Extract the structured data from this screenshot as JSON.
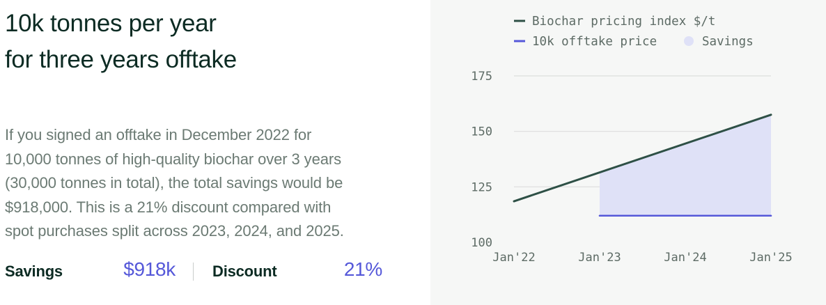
{
  "left": {
    "title_line1": "10k tonnes per year",
    "title_line2": "for three years offtake",
    "body_lines": [
      "If you signed an offtake in December 2022 for",
      "10,000 tonnes of high-quality biochar over 3 years",
      "(30,000 tonnes in total), the total savings would be",
      "$918,000. This is a 21% discount compared with",
      "spot purchases split across 2023, 2024, and 2025."
    ],
    "metrics": {
      "savings_label": "Savings",
      "savings_value": "$918k",
      "discount_label": "Discount",
      "discount_value": "21%"
    }
  },
  "colors": {
    "index_line": "#2e5046",
    "offtake_line": "#5558d9",
    "savings_fill": "#dfe1f7",
    "gridline": "#dcdedd",
    "tick_text": "#5d6b65",
    "panel_bg": "#f6f7f6"
  },
  "chart_data": {
    "type": "line",
    "legend": [
      {
        "label": "Biochar pricing index $/t",
        "marker": "line",
        "color": "#2e5046"
      },
      {
        "label": "10k offtake price",
        "marker": "line",
        "color": "#5558d9"
      },
      {
        "label": "Savings",
        "marker": "dot",
        "color": "#dfe1f7"
      }
    ],
    "legend_position": "top",
    "x_ticks": [
      "Jan'22",
      "Jan'23",
      "Jan'24",
      "Jan'25"
    ],
    "y_ticks": [
      100,
      125,
      150,
      175
    ],
    "xlim": [
      "2022-01",
      "2025-01"
    ],
    "ylim": [
      100,
      175
    ],
    "grid": true,
    "series": [
      {
        "name": "Biochar pricing index $/t",
        "color": "#2e5046",
        "points": [
          {
            "x": "2022-01",
            "y": 118.5
          },
          {
            "x": "2025-01",
            "y": 157.5
          }
        ]
      },
      {
        "name": "10k offtake price",
        "color": "#5558d9",
        "points": [
          {
            "x": "2023-01",
            "y": 112
          },
          {
            "x": "2025-01",
            "y": 112
          }
        ]
      }
    ],
    "shaded_area": {
      "name": "Savings",
      "color": "#dfe1f7",
      "x_range": [
        "2023-01",
        "2025-01"
      ],
      "between": [
        "Biochar pricing index $/t",
        "10k offtake price"
      ]
    }
  }
}
